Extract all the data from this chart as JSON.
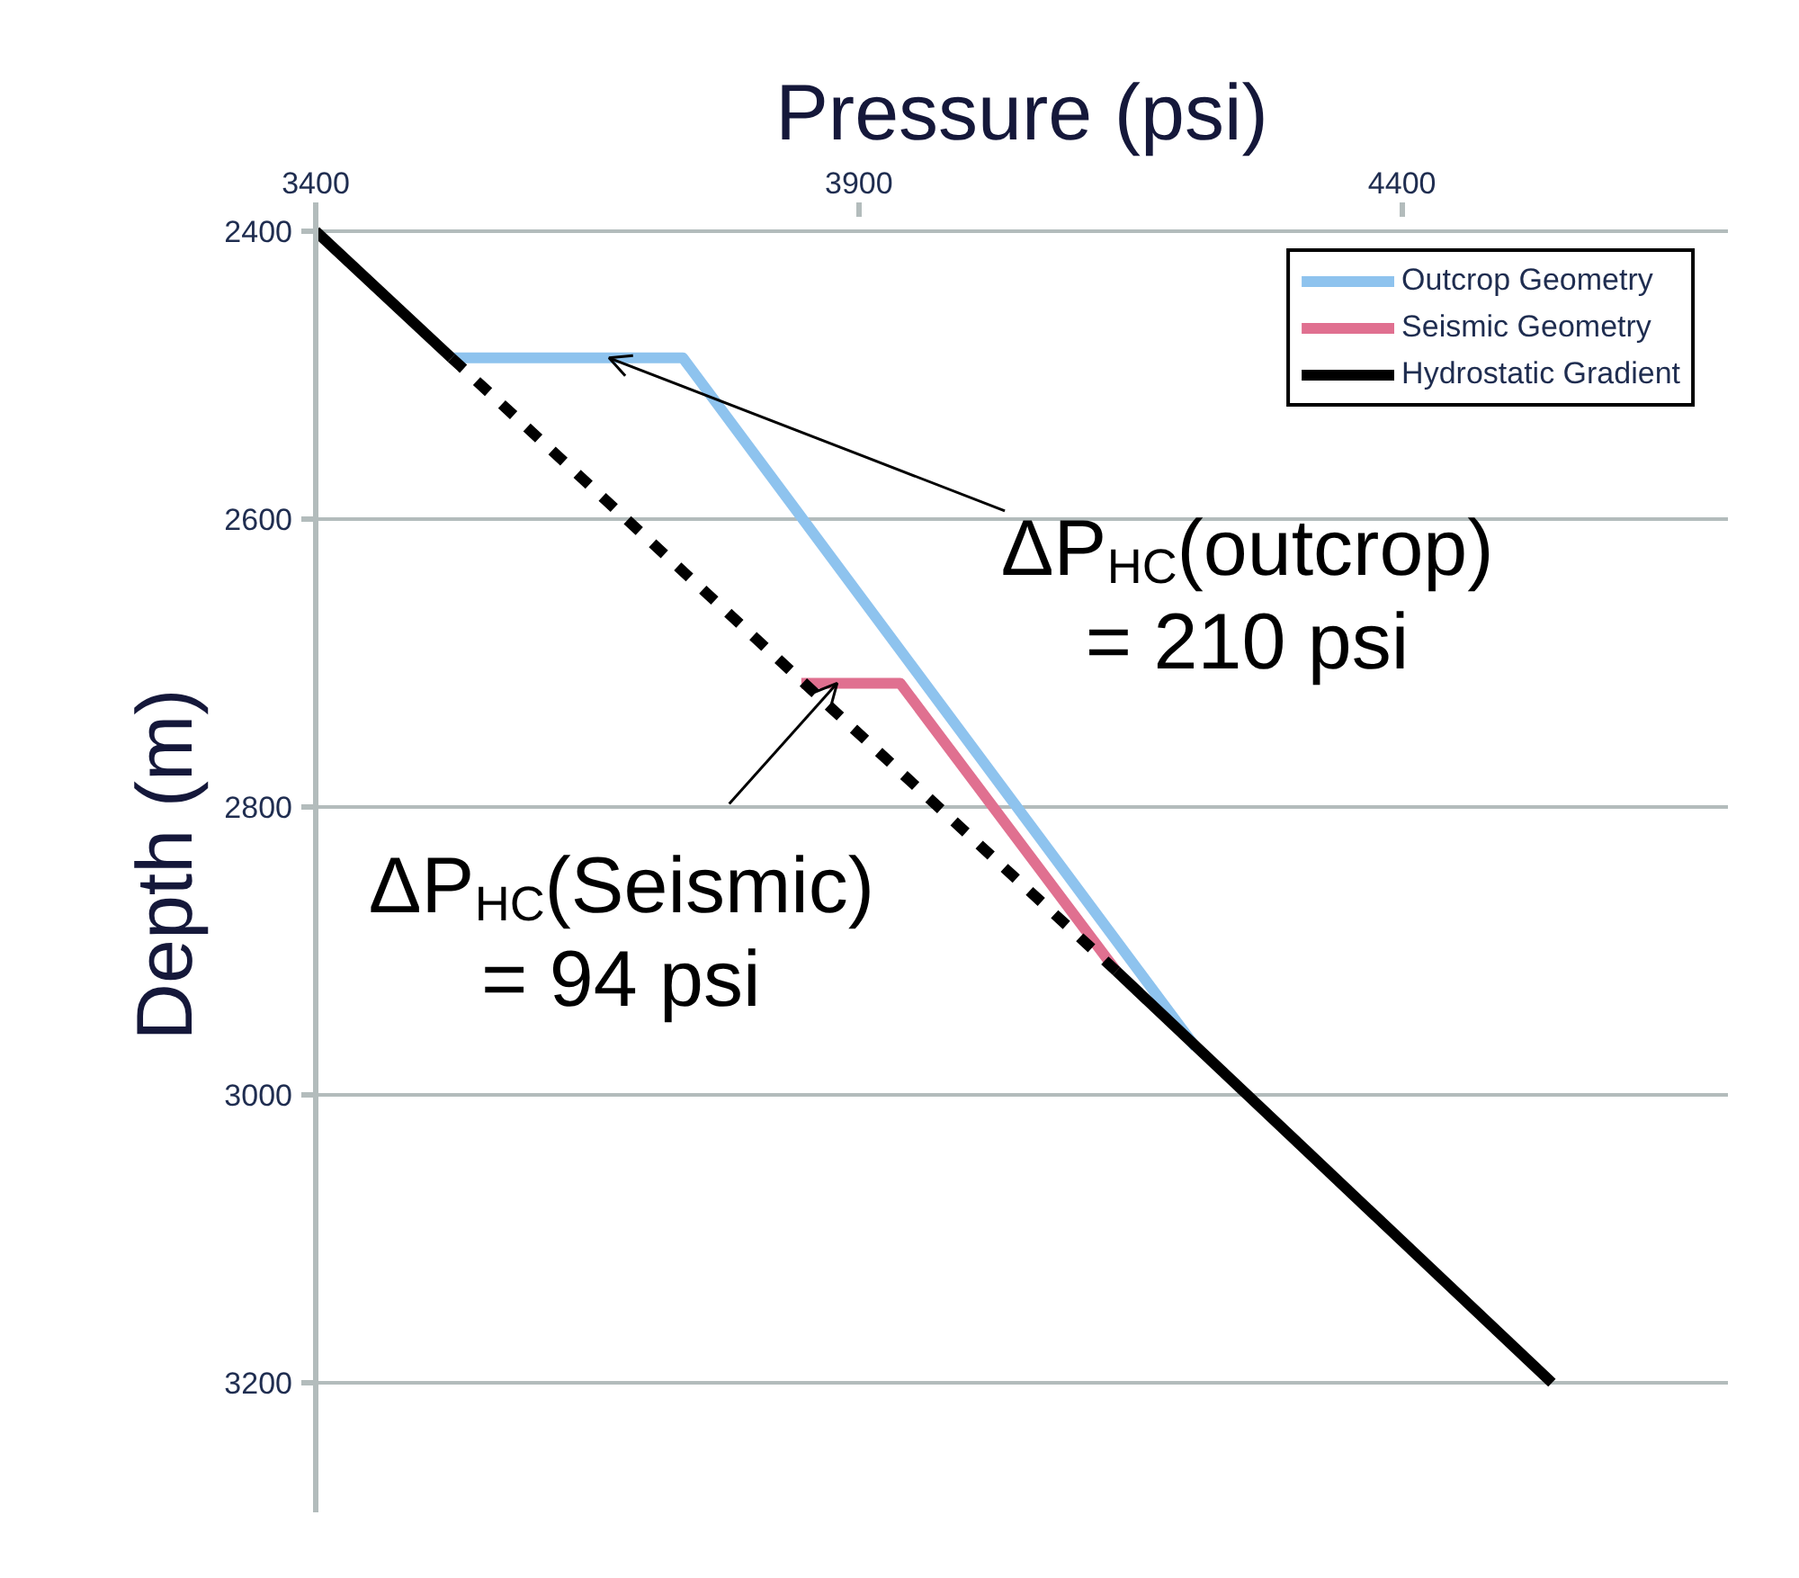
{
  "chart_data": {
    "type": "line",
    "xlabel": "Pressure (psi)",
    "ylabel": "Depth (m)",
    "xlim": [
      3400,
      4700
    ],
    "ylim": [
      3290,
      2390
    ],
    "xticks": [
      3400,
      3900,
      4400
    ],
    "yticks": [
      2400,
      2600,
      2800,
      3000,
      3200
    ],
    "grid": "y",
    "legend": "top right",
    "series": [
      {
        "name": "Outcrop Geometry",
        "color": "#8ec3ee",
        "line_style": "solid",
        "x": [
          3525,
          3738,
          4210
        ],
        "values": [
          2488,
          2488,
          2967
        ]
      },
      {
        "name": "Seismic Geometry",
        "color": "#e07090",
        "line_style": "solid",
        "x": [
          3847,
          3938,
          4137
        ],
        "values": [
          2714,
          2714,
          2914
        ]
      },
      {
        "name": "Hydrostatic Gradient",
        "color": "#000000",
        "line_style": "solid",
        "x": [
          3400,
          3525
        ],
        "values": [
          2400,
          2488
        ]
      },
      {
        "color": "#000000",
        "line_style": "solid",
        "x": [
          4137,
          4538
        ],
        "values": [
          2914,
          3200
        ]
      },
      {
        "color": "#000000",
        "line_style": "dashed",
        "x": [
          3525,
          4137
        ],
        "values": [
          2488,
          2914
        ]
      }
    ],
    "annotations": [
      {
        "text": "ΔP$_{HC}$(outcrop)\n= 210 psi",
        "x": 3670,
        "y": 2488
      },
      {
        "text": "ΔP$_{HC}$(Seismic)\n= 94 psi",
        "x": 3880,
        "y": 2714
      }
    ]
  }
}
